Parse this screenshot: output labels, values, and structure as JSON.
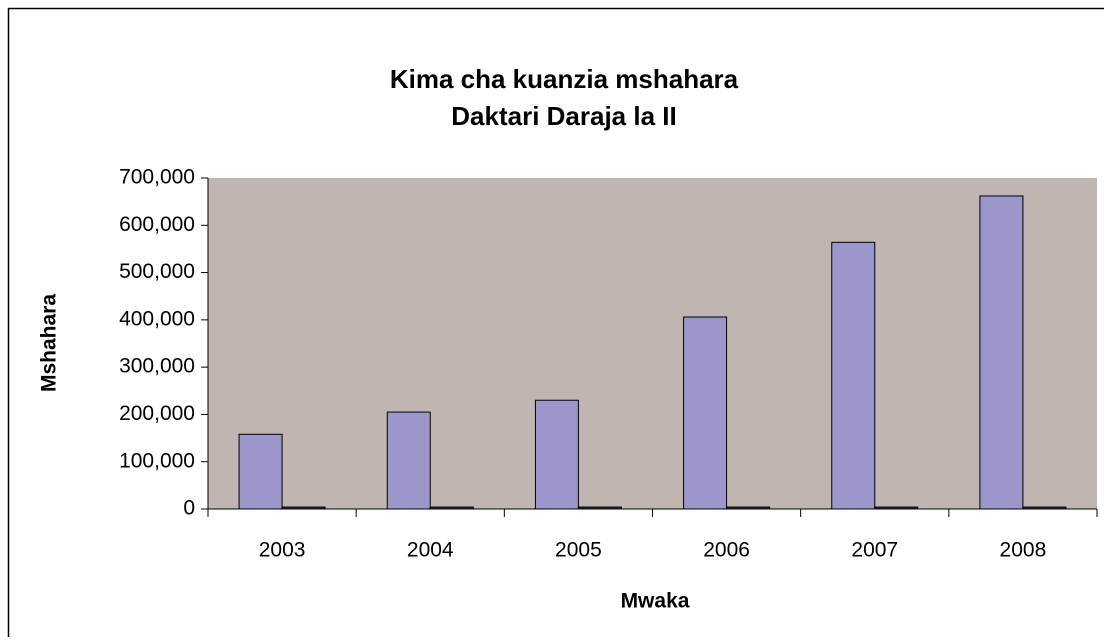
{
  "chart_data": {
    "type": "bar",
    "title": [
      "Kima cha kuanzia mshahara",
      "Daktari Daraja la II"
    ],
    "x_label": "Mwaka",
    "y_label": "Mshahara",
    "categories": [
      "2003",
      "2004",
      "2005",
      "2006",
      "2007",
      "2008"
    ],
    "series": [
      {
        "color": "#9b97cb",
        "values": [
          158000,
          205000,
          230000,
          406000,
          564000,
          662000
        ]
      },
      {
        "color": "#333333",
        "values": [
          2003,
          2004,
          2005,
          2006,
          2007,
          2008
        ]
      }
    ],
    "ylim": [
      0,
      700000
    ],
    "yticks": [
      0,
      {
        "value": 100000,
        "label": "100,000"
      },
      {
        "value": 200000,
        "label": "200,000"
      },
      {
        "value": 300000,
        "label": "300,000"
      },
      {
        "value": 400000,
        "label": "400,000"
      },
      {
        "value": 500000,
        "label": "500,000"
      },
      {
        "value": 600000,
        "label": "600,000"
      },
      {
        "value": 700000,
        "label": "700,000"
      }
    ],
    "plot_background": "#c0b5b1"
  }
}
